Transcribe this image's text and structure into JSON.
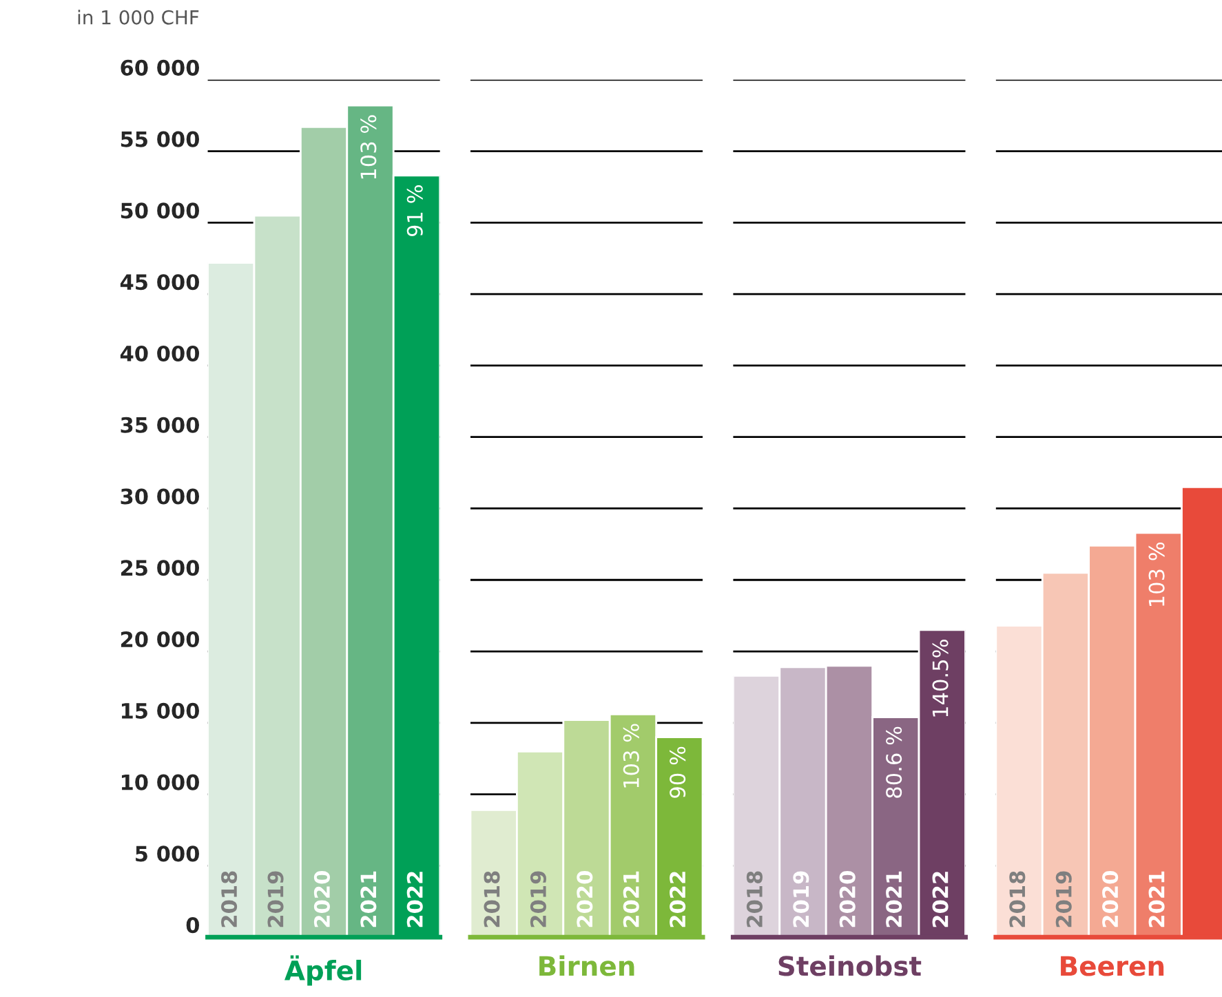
{
  "chart_data": [
    {
      "type": "bar",
      "xlabel": "Äpfel",
      "ylabel": "in 1 000 CHF",
      "categories": [
        "2018",
        "2019",
        "2020",
        "2021",
        "2022"
      ],
      "values": [
        47200,
        50500,
        56700,
        58200,
        53300
      ],
      "colors": [
        "#dcece0",
        "#c7e1c9",
        "#a2cda8",
        "#66b684",
        "#00a057"
      ],
      "annotations": [
        {
          "text": "103 %",
          "x": "2021",
          "y": 58200
        },
        {
          "text": "91 %",
          "x": "2022",
          "y": 53300
        }
      ],
      "ylim": [
        0,
        60000
      ],
      "yticks": [
        {
          "value": 0,
          "label": "0"
        },
        {
          "value": 5000,
          "label": "5 000"
        },
        {
          "value": 10000,
          "label": "10 000"
        },
        {
          "value": 15000,
          "label": "15 000"
        },
        {
          "value": 20000,
          "label": "20 000"
        },
        {
          "value": 25000,
          "label": "25 000"
        },
        {
          "value": 30000,
          "label": "30 000"
        },
        {
          "value": 35000,
          "label": "35 000"
        },
        {
          "value": 40000,
          "label": "40 000"
        },
        {
          "value": 45000,
          "label": "45 000"
        },
        {
          "value": 50000,
          "label": "50 000"
        },
        {
          "value": 55000,
          "label": "55 000"
        },
        {
          "value": 60000,
          "label": "60 000"
        }
      ],
      "grid": "y"
    },
    {
      "type": "bar",
      "xlabel": "Birnen",
      "categories": [
        "2018",
        "2019",
        "2020",
        "2021",
        "2022"
      ],
      "values": [
        8900,
        13000,
        15200,
        15600,
        14000
      ],
      "colors": [
        "#e0ecd0",
        "#d0e6b5",
        "#bdda96",
        "#a2cb6b",
        "#7db83a"
      ],
      "annotations": [
        {
          "text": "103 %",
          "x": "2021",
          "y": 15600
        },
        {
          "text": "90 %",
          "x": "2022",
          "y": 14000
        }
      ],
      "ylim": [
        0,
        60000
      ],
      "yticks": [
        0,
        5000,
        10000,
        15000,
        20000,
        25000,
        30000,
        35000,
        40000,
        45000,
        50000,
        55000,
        60000
      ],
      "grid": "y",
      "tick_labels": "x"
    },
    {
      "type": "bar",
      "xlabel": "Steinobst",
      "categories": [
        "2018",
        "2019",
        "2020",
        "2021",
        "2022"
      ],
      "values": [
        18300,
        18900,
        19000,
        15400,
        21500
      ],
      "colors": [
        "#ddd3dc",
        "#c8b7c7",
        "#ac90a5",
        "#8a6683",
        "#6e3f63"
      ],
      "annotations": [
        {
          "text": "80.6 %",
          "x": "2021",
          "y": 15400
        },
        {
          "text": "140.5%",
          "x": "2022",
          "y": 21500
        }
      ],
      "ylim": [
        0,
        60000
      ],
      "yticks": [
        0,
        5000,
        10000,
        15000,
        20000,
        25000,
        30000,
        35000,
        40000,
        45000,
        50000,
        55000,
        60000
      ],
      "grid": "y",
      "tick_labels": "x"
    },
    {
      "type": "bar",
      "xlabel": "Beeren",
      "categories": [
        "2018",
        "2019",
        "2020",
        "2021",
        null
      ],
      "values": [
        21800,
        25500,
        27400,
        28300,
        31500
      ],
      "colors": [
        "#fbdfd6",
        "#f7c6b5",
        "#f4a993",
        "#ef7e6a",
        "#e84a3a"
      ],
      "annotations": [
        {
          "text": "103 %",
          "x": "2021",
          "y": 28300
        }
      ],
      "ylim": [
        0,
        60000
      ],
      "yticks": [
        0,
        5000,
        10000,
        15000,
        20000,
        25000,
        30000,
        35000,
        40000,
        45000,
        50000,
        55000,
        60000
      ],
      "grid": "y",
      "tick_labels": "x"
    }
  ]
}
